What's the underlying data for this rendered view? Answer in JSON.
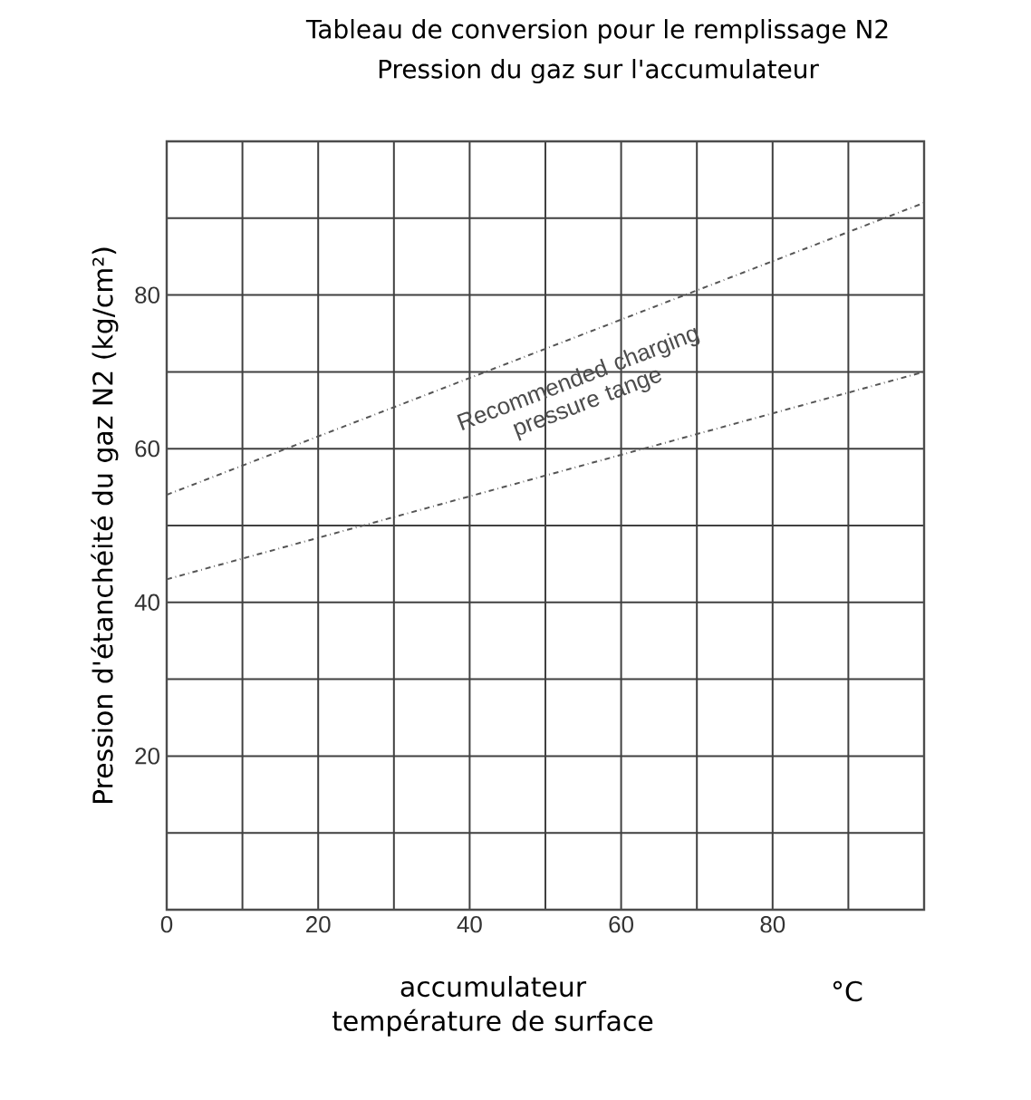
{
  "chart_data": {
    "type": "line",
    "title": "Tableau de conversion pour le remplissage N2",
    "subtitle": "Pression du gaz sur l'accumulateur",
    "xlabel": "accumulateur température de surface",
    "ylabel": "Pression d'étanchéité du gaz N2 (kg/cm²)",
    "x": [
      0,
      100
    ],
    "series": [
      {
        "color": "#555555",
        "values": [
          54,
          92
        ]
      },
      {
        "color": "#555555",
        "values": [
          43,
          70
        ]
      }
    ],
    "xlim": [
      0,
      100
    ],
    "ylim": [
      0,
      100
    ],
    "xticks": [
      0,
      {
        "value": 10,
        "label": null
      },
      20,
      {
        "value": 30,
        "label": null
      },
      40,
      {
        "value": 50,
        "label": null
      },
      60,
      {
        "value": 70,
        "label": null
      },
      80,
      {
        "value": 90,
        "label": null
      },
      {
        "value": 100,
        "label": null
      }
    ],
    "yticks": [
      {
        "value": 0,
        "label": null
      },
      {
        "value": 10,
        "label": null
      },
      20,
      {
        "value": 30,
        "label": null
      },
      40,
      {
        "value": 50,
        "label": null
      },
      60,
      {
        "value": 70,
        "label": null
      },
      80,
      {
        "value": 90,
        "label": null
      },
      {
        "value": 100,
        "label": null
      }
    ],
    "grid": true,
    "line_style": "dashed",
    "marker": "none",
    "annotations": [
      "Recommended charging pressure tange",
      "°C"
    ]
  }
}
